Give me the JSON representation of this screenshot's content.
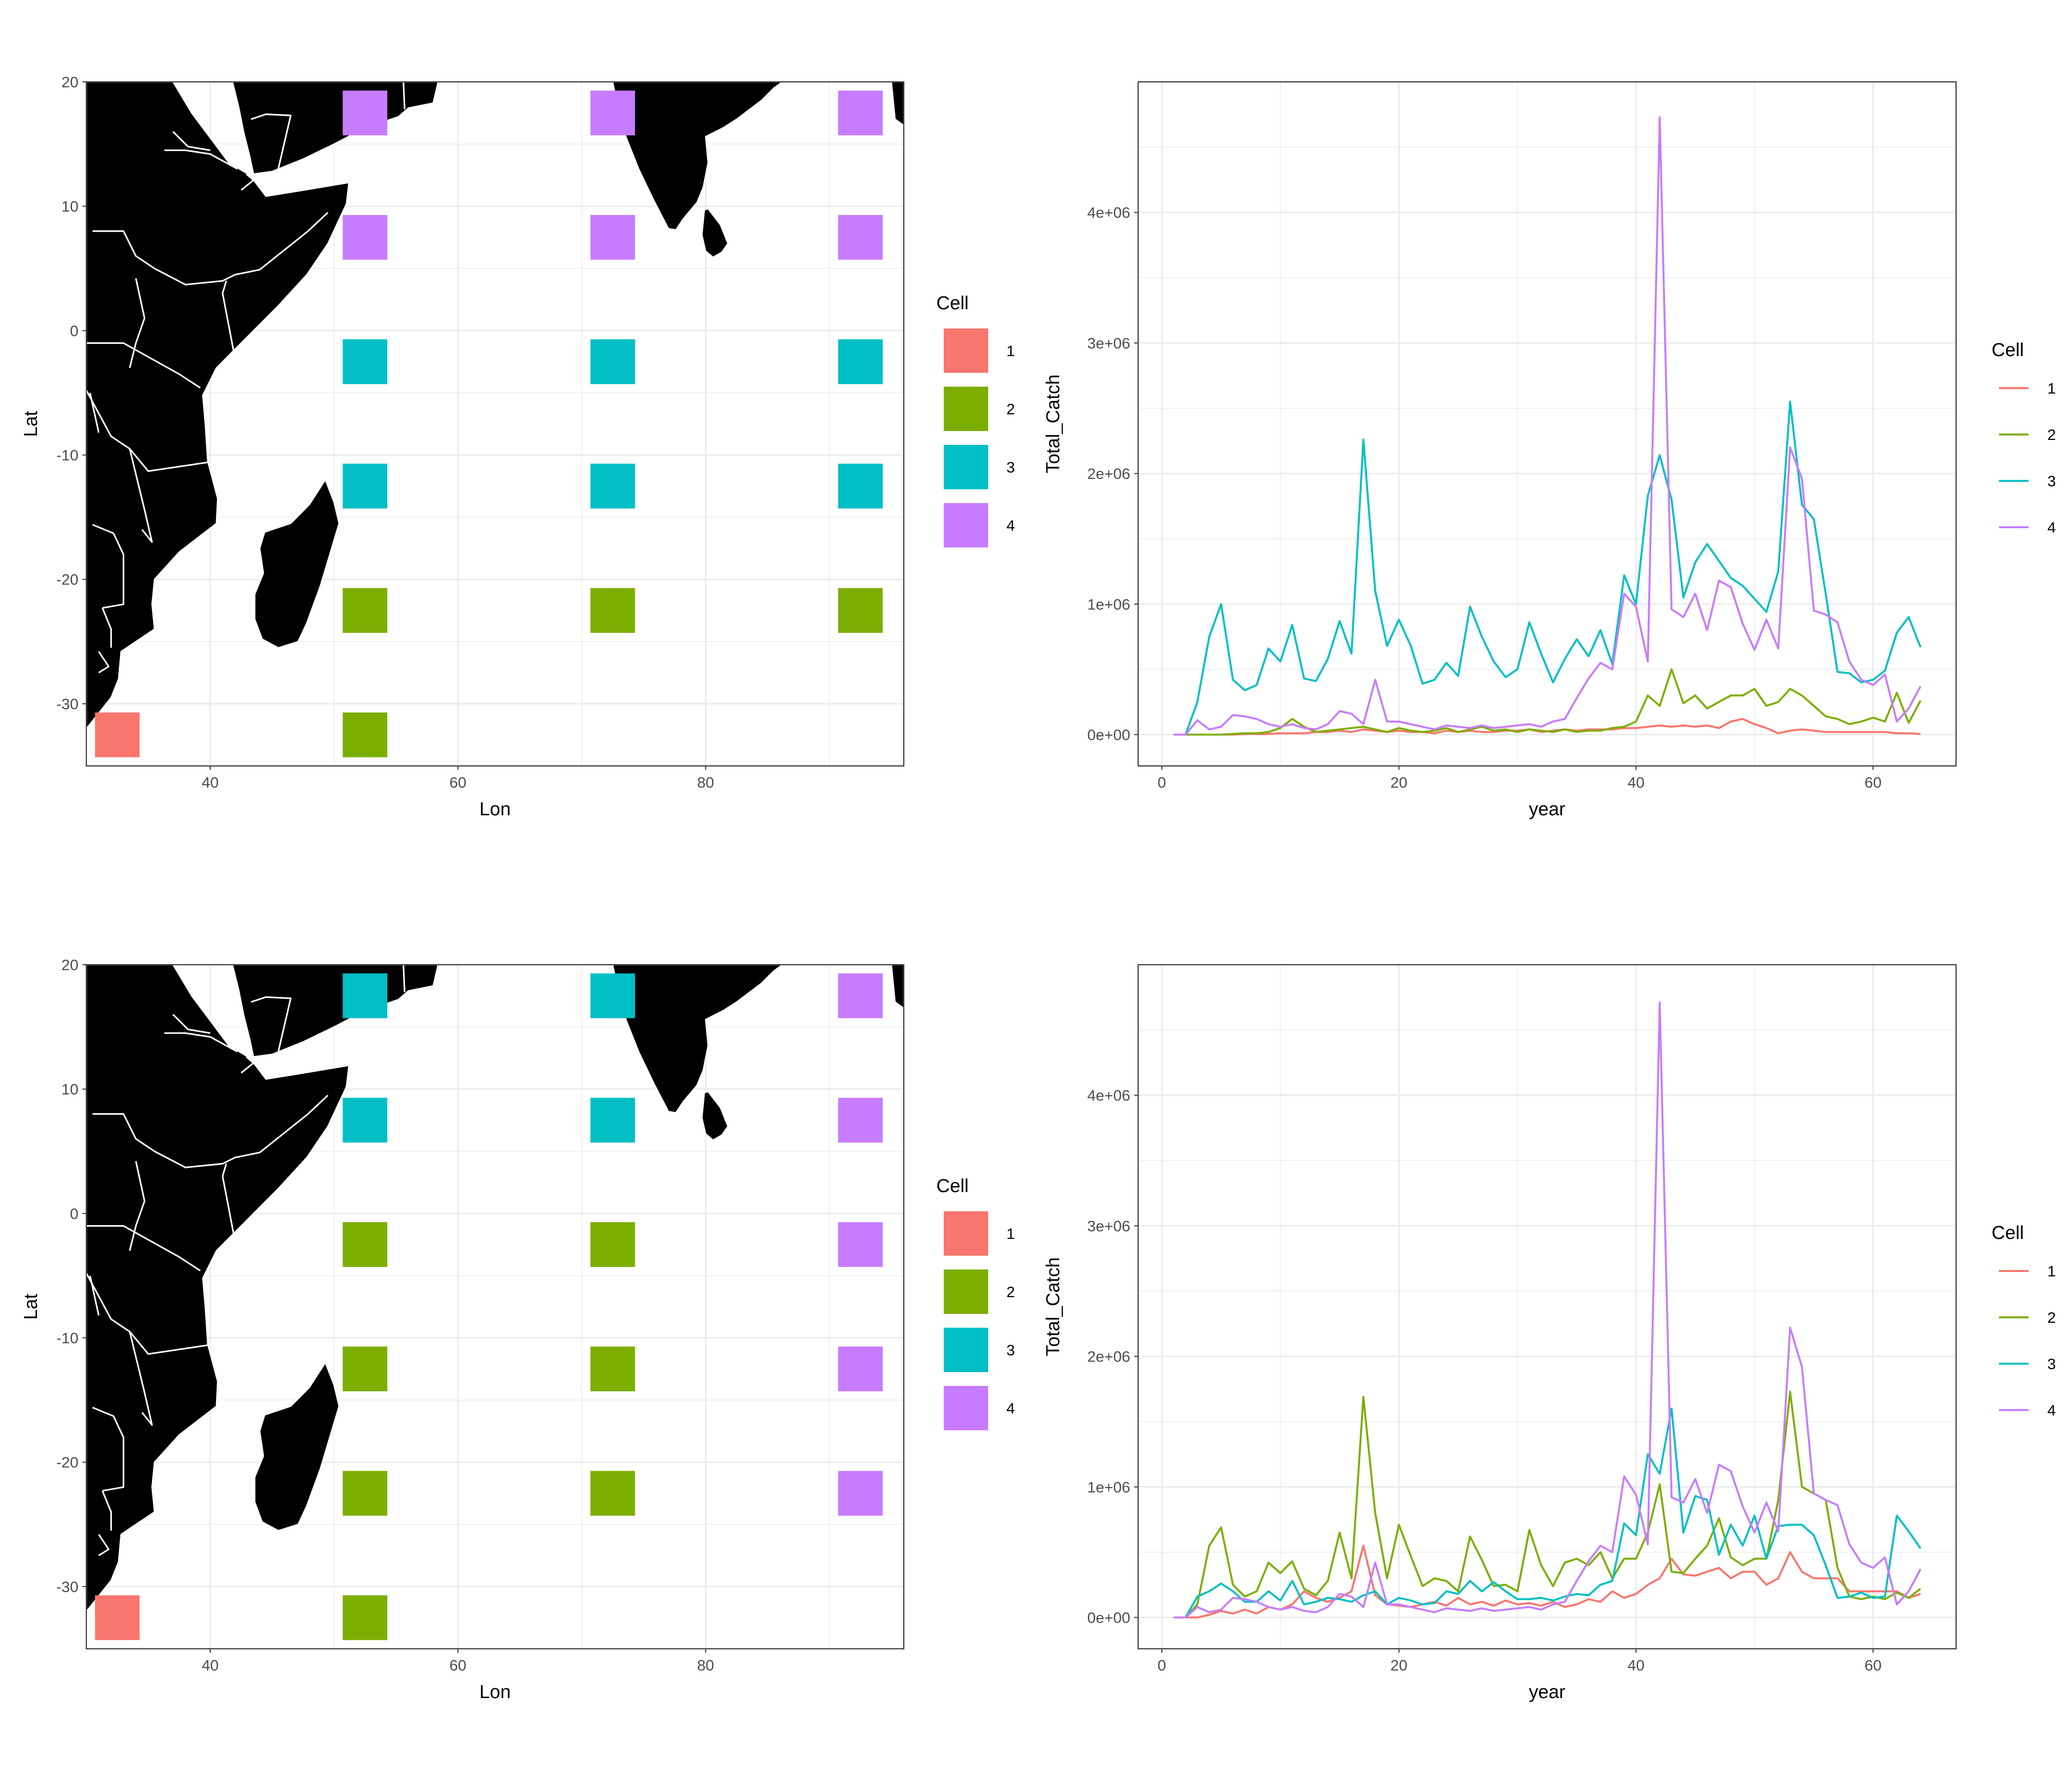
{
  "colors": {
    "1": "#F8766D",
    "2": "#7CAE00",
    "3": "#00BFC4",
    "4": "#C77CFF"
  },
  "chart_data": [
    {
      "type": "tile-map",
      "xlabel": "Lon",
      "ylabel": "Lat",
      "xlim": [
        30,
        96
      ],
      "ylim": [
        -35,
        20
      ],
      "xticks": [
        "40",
        "60",
        "80"
      ],
      "yticks": [
        "-30",
        "-20",
        "-10",
        "0",
        "10",
        "20"
      ],
      "legend": {
        "title": "Cell",
        "entries": [
          "1",
          "2",
          "3",
          "4"
        ],
        "position": "right"
      },
      "tiles": [
        {
          "lon": 32.5,
          "lat": -32.5,
          "cell": "1"
        },
        {
          "lon": 52.5,
          "lat": -32.5,
          "cell": "2"
        },
        {
          "lon": 52.5,
          "lat": -22.5,
          "cell": "2"
        },
        {
          "lon": 72.5,
          "lat": -22.5,
          "cell": "2"
        },
        {
          "lon": 92.5,
          "lat": -22.5,
          "cell": "2"
        },
        {
          "lon": 52.5,
          "lat": -12.5,
          "cell": "3"
        },
        {
          "lon": 72.5,
          "lat": -12.5,
          "cell": "3"
        },
        {
          "lon": 92.5,
          "lat": -12.5,
          "cell": "3"
        },
        {
          "lon": 52.5,
          "lat": -2.5,
          "cell": "3"
        },
        {
          "lon": 72.5,
          "lat": -2.5,
          "cell": "3"
        },
        {
          "lon": 92.5,
          "lat": -2.5,
          "cell": "3"
        },
        {
          "lon": 52.5,
          "lat": 7.5,
          "cell": "4"
        },
        {
          "lon": 72.5,
          "lat": 7.5,
          "cell": "4"
        },
        {
          "lon": 92.5,
          "lat": 7.5,
          "cell": "4"
        },
        {
          "lon": 52.5,
          "lat": 17.5,
          "cell": "4"
        },
        {
          "lon": 72.5,
          "lat": 17.5,
          "cell": "4"
        },
        {
          "lon": 92.5,
          "lat": 17.5,
          "cell": "4"
        }
      ]
    },
    {
      "type": "line",
      "xlabel": "year",
      "ylabel": "Total_Catch",
      "xlim": [
        -2,
        67
      ],
      "ylim": [
        -240000,
        5000000
      ],
      "xticks": [
        "0",
        "20",
        "40",
        "60"
      ],
      "yticks": [
        "0e+00",
        "1e+06",
        "2e+06",
        "3e+06",
        "4e+06"
      ],
      "legend": {
        "title": "Cell",
        "entries": [
          "1",
          "2",
          "3",
          "4"
        ],
        "position": "right"
      },
      "x": [
        1,
        2,
        3,
        4,
        5,
        6,
        7,
        8,
        9,
        10,
        11,
        12,
        13,
        14,
        15,
        16,
        17,
        18,
        19,
        20,
        21,
        22,
        23,
        24,
        25,
        26,
        27,
        28,
        29,
        30,
        31,
        32,
        33,
        34,
        35,
        36,
        37,
        38,
        39,
        40,
        41,
        42,
        43,
        44,
        45,
        46,
        47,
        48,
        49,
        50,
        51,
        52,
        53,
        54,
        55,
        56,
        57,
        58,
        59,
        60,
        61,
        62,
        63,
        64
      ],
      "series": [
        {
          "name": "1",
          "values": [
            0,
            0,
            0,
            0,
            0,
            0,
            5000,
            5000,
            5000,
            10000,
            10000,
            10000,
            20000,
            20000,
            30000,
            20000,
            40000,
            30000,
            20000,
            30000,
            20000,
            20000,
            10000,
            30000,
            20000,
            30000,
            20000,
            20000,
            30000,
            30000,
            40000,
            20000,
            30000,
            40000,
            30000,
            40000,
            40000,
            40000,
            50000,
            50000,
            60000,
            70000,
            60000,
            70000,
            60000,
            70000,
            50000,
            100000,
            120000,
            80000,
            50000,
            10000,
            30000,
            40000,
            30000,
            20000,
            20000,
            20000,
            20000,
            20000,
            20000,
            10000,
            10000,
            5000
          ]
        },
        {
          "name": "2",
          "values": [
            0,
            0,
            0,
            0,
            0,
            5000,
            10000,
            10000,
            20000,
            50000,
            120000,
            60000,
            20000,
            30000,
            40000,
            50000,
            60000,
            40000,
            20000,
            50000,
            30000,
            20000,
            30000,
            50000,
            20000,
            40000,
            60000,
            30000,
            40000,
            20000,
            40000,
            30000,
            20000,
            40000,
            20000,
            30000,
            30000,
            50000,
            60000,
            100000,
            300000,
            220000,
            500000,
            240000,
            300000,
            200000,
            250000,
            300000,
            300000,
            350000,
            220000,
            250000,
            350000,
            300000,
            220000,
            140000,
            120000,
            80000,
            100000,
            130000,
            100000,
            320000,
            90000,
            260000
          ]
        },
        {
          "name": "3",
          "values": [
            0,
            0,
            250000,
            750000,
            1000000,
            420000,
            340000,
            380000,
            660000,
            560000,
            840000,
            430000,
            410000,
            580000,
            870000,
            620000,
            2260000,
            1100000,
            680000,
            880000,
            680000,
            390000,
            420000,
            550000,
            450000,
            980000,
            750000,
            560000,
            440000,
            500000,
            860000,
            620000,
            400000,
            580000,
            730000,
            600000,
            800000,
            540000,
            1220000,
            1000000,
            1830000,
            2140000,
            1800000,
            1050000,
            1320000,
            1460000,
            1330000,
            1200000,
            1140000,
            1040000,
            940000,
            1250000,
            2550000,
            1760000,
            1650000,
            1080000,
            480000,
            470000,
            400000,
            420000,
            490000,
            780000,
            900000,
            670000
          ]
        },
        {
          "name": "4",
          "values": [
            0,
            0,
            110000,
            40000,
            60000,
            150000,
            140000,
            120000,
            80000,
            60000,
            80000,
            50000,
            40000,
            80000,
            180000,
            160000,
            80000,
            420000,
            100000,
            100000,
            80000,
            60000,
            40000,
            70000,
            60000,
            50000,
            70000,
            50000,
            60000,
            70000,
            80000,
            60000,
            100000,
            120000,
            280000,
            430000,
            550000,
            500000,
            1080000,
            980000,
            560000,
            4730000,
            960000,
            900000,
            1080000,
            800000,
            1180000,
            1130000,
            850000,
            650000,
            880000,
            660000,
            2200000,
            1960000,
            950000,
            920000,
            860000,
            560000,
            420000,
            380000,
            460000,
            100000,
            200000,
            370000
          ]
        }
      ]
    },
    {
      "type": "tile-map",
      "xlabel": "Lon",
      "ylabel": "Lat",
      "xlim": [
        30,
        96
      ],
      "ylim": [
        -35,
        20
      ],
      "xticks": [
        "40",
        "60",
        "80"
      ],
      "yticks": [
        "-30",
        "-20",
        "-10",
        "0",
        "10",
        "20"
      ],
      "legend": {
        "title": "Cell",
        "entries": [
          "1",
          "2",
          "3",
          "4"
        ],
        "position": "right"
      },
      "tiles": [
        {
          "lon": 32.5,
          "lat": -32.5,
          "cell": "1"
        },
        {
          "lon": 52.5,
          "lat": -32.5,
          "cell": "2"
        },
        {
          "lon": 52.5,
          "lat": -22.5,
          "cell": "2"
        },
        {
          "lon": 72.5,
          "lat": -22.5,
          "cell": "2"
        },
        {
          "lon": 92.5,
          "lat": -22.5,
          "cell": "4"
        },
        {
          "lon": 52.5,
          "lat": -12.5,
          "cell": "2"
        },
        {
          "lon": 72.5,
          "lat": -12.5,
          "cell": "2"
        },
        {
          "lon": 92.5,
          "lat": -12.5,
          "cell": "4"
        },
        {
          "lon": 52.5,
          "lat": -2.5,
          "cell": "2"
        },
        {
          "lon": 72.5,
          "lat": -2.5,
          "cell": "2"
        },
        {
          "lon": 92.5,
          "lat": -2.5,
          "cell": "4"
        },
        {
          "lon": 52.5,
          "lat": 7.5,
          "cell": "3"
        },
        {
          "lon": 72.5,
          "lat": 7.5,
          "cell": "3"
        },
        {
          "lon": 92.5,
          "lat": 7.5,
          "cell": "4"
        },
        {
          "lon": 52.5,
          "lat": 17.5,
          "cell": "3"
        },
        {
          "lon": 72.5,
          "lat": 17.5,
          "cell": "3"
        },
        {
          "lon": 92.5,
          "lat": 17.5,
          "cell": "4"
        }
      ]
    },
    {
      "type": "line",
      "xlabel": "year",
      "ylabel": "Total_Catch",
      "xlim": [
        -2,
        67
      ],
      "ylim": [
        -240000,
        5000000
      ],
      "xticks": [
        "0",
        "20",
        "40",
        "60"
      ],
      "yticks": [
        "0e+00",
        "1e+06",
        "2e+06",
        "3e+06",
        "4e+06"
      ],
      "legend": {
        "title": "Cell",
        "entries": [
          "1",
          "2",
          "3",
          "4"
        ],
        "position": "right"
      },
      "x": [
        1,
        2,
        3,
        4,
        5,
        6,
        7,
        8,
        9,
        10,
        11,
        12,
        13,
        14,
        15,
        16,
        17,
        18,
        19,
        20,
        21,
        22,
        23,
        24,
        25,
        26,
        27,
        28,
        29,
        30,
        31,
        32,
        33,
        34,
        35,
        36,
        37,
        38,
        39,
        40,
        41,
        42,
        43,
        44,
        45,
        46,
        47,
        48,
        49,
        50,
        51,
        52,
        53,
        54,
        55,
        56,
        57,
        58,
        59,
        60,
        61,
        62,
        63,
        64
      ],
      "series": [
        {
          "name": "1",
          "values": [
            0,
            0,
            0,
            20000,
            50000,
            30000,
            60000,
            30000,
            80000,
            60000,
            100000,
            200000,
            150000,
            120000,
            150000,
            200000,
            550000,
            170000,
            100000,
            90000,
            80000,
            100000,
            120000,
            90000,
            150000,
            100000,
            120000,
            90000,
            130000,
            100000,
            110000,
            90000,
            120000,
            80000,
            100000,
            140000,
            120000,
            200000,
            150000,
            180000,
            250000,
            300000,
            450000,
            330000,
            320000,
            350000,
            380000,
            300000,
            350000,
            350000,
            250000,
            300000,
            500000,
            350000,
            300000,
            300000,
            300000,
            200000,
            200000,
            200000,
            200000,
            200000,
            150000,
            180000
          ]
        },
        {
          "name": "2",
          "values": [
            0,
            0,
            100000,
            550000,
            690000,
            250000,
            160000,
            200000,
            420000,
            340000,
            430000,
            220000,
            170000,
            280000,
            650000,
            300000,
            1690000,
            800000,
            300000,
            710000,
            470000,
            240000,
            300000,
            280000,
            200000,
            620000,
            440000,
            240000,
            250000,
            200000,
            670000,
            400000,
            240000,
            420000,
            450000,
            400000,
            500000,
            300000,
            450000,
            450000,
            650000,
            1020000,
            350000,
            340000,
            450000,
            550000,
            760000,
            460000,
            400000,
            450000,
            450000,
            900000,
            1730000,
            1000000,
            950000,
            900000,
            380000,
            160000,
            140000,
            160000,
            140000,
            190000,
            150000,
            220000
          ]
        },
        {
          "name": "3",
          "values": [
            0,
            0,
            160000,
            200000,
            260000,
            200000,
            120000,
            120000,
            200000,
            130000,
            280000,
            100000,
            120000,
            150000,
            140000,
            120000,
            170000,
            200000,
            100000,
            150000,
            130000,
            100000,
            110000,
            200000,
            180000,
            280000,
            200000,
            270000,
            200000,
            140000,
            140000,
            150000,
            130000,
            160000,
            180000,
            170000,
            250000,
            280000,
            720000,
            630000,
            1250000,
            1100000,
            1600000,
            650000,
            930000,
            900000,
            480000,
            710000,
            550000,
            780000,
            450000,
            700000,
            710000,
            710000,
            630000,
            400000,
            150000,
            160000,
            190000,
            150000,
            160000,
            780000,
            660000,
            530000
          ]
        },
        {
          "name": "4",
          "values": [
            0,
            0,
            80000,
            40000,
            60000,
            150000,
            140000,
            120000,
            80000,
            60000,
            80000,
            50000,
            40000,
            80000,
            180000,
            160000,
            80000,
            420000,
            100000,
            100000,
            80000,
            60000,
            40000,
            70000,
            60000,
            50000,
            70000,
            50000,
            60000,
            70000,
            80000,
            60000,
            100000,
            120000,
            280000,
            430000,
            550000,
            500000,
            1080000,
            940000,
            560000,
            4710000,
            920000,
            880000,
            1060000,
            800000,
            1170000,
            1120000,
            850000,
            650000,
            880000,
            660000,
            2220000,
            1920000,
            950000,
            900000,
            860000,
            560000,
            420000,
            380000,
            460000,
            100000,
            200000,
            370000
          ]
        }
      ]
    }
  ]
}
